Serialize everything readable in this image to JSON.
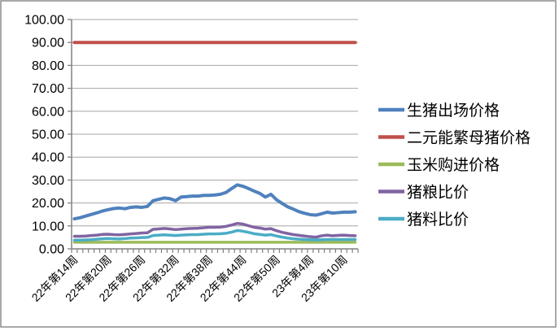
{
  "chart_data": {
    "type": "line",
    "title": "",
    "xlabel": "",
    "ylabel": "",
    "grid": true,
    "legend_position": "right",
    "x_axis": {
      "n_points": 51,
      "tick_labels": [
        "22年第14周",
        "22年第20周",
        "22年第26周",
        "22年第32周",
        "22年第38周",
        "22年第44周",
        "22年第50周",
        "23年第4周",
        "23年第10周"
      ],
      "tick_label_indices": [
        0,
        6,
        12,
        18,
        24,
        30,
        36,
        42,
        48
      ]
    },
    "y_axis": {
      "min": 0,
      "max": 100,
      "step": 10,
      "tick_labels": [
        "100.00",
        "90.00",
        "80.00",
        "70.00",
        "60.00",
        "50.00",
        "40.00",
        "30.00",
        "20.00",
        "10.00",
        "0.00"
      ]
    },
    "series": [
      {
        "name": "生猪出场价格",
        "color": "#4F81BD",
        "values": [
          13.1,
          13.6,
          14.3,
          15.0,
          15.7,
          16.5,
          17.1,
          17.6,
          17.8,
          17.5,
          18.1,
          18.3,
          18.1,
          18.5,
          21.0,
          21.6,
          22.2,
          21.9,
          21.0,
          22.6,
          22.8,
          23.0,
          23.0,
          23.3,
          23.3,
          23.5,
          23.8,
          24.6,
          26.3,
          27.9,
          27.3,
          26.3,
          25.2,
          24.2,
          22.6,
          23.8,
          21.4,
          19.8,
          18.3,
          17.3,
          16.2,
          15.5,
          14.9,
          14.7,
          15.3,
          16.0,
          15.6,
          15.8,
          16.0,
          16.0,
          16.2
        ]
      },
      {
        "name": "二元能繁母猪价格",
        "color": "#C0504D",
        "values": [
          90,
          90,
          90,
          90,
          90,
          90,
          90,
          90,
          90,
          90,
          90,
          90,
          90,
          90,
          90,
          90,
          90,
          90,
          90,
          90,
          90,
          90,
          90,
          90,
          90,
          90,
          90,
          90,
          90,
          90,
          90,
          90,
          90,
          90,
          90,
          90,
          90,
          90,
          90,
          90,
          90,
          90,
          90,
          90,
          90,
          90,
          90,
          90,
          90,
          90,
          90
        ]
      },
      {
        "name": "玉米购进价格",
        "color": "#9BBB59",
        "values": [
          2.9,
          2.9,
          2.9,
          2.9,
          2.9,
          2.9,
          2.9,
          2.9,
          2.9,
          2.9,
          2.9,
          2.9,
          2.9,
          2.9,
          2.9,
          2.9,
          2.9,
          2.9,
          2.9,
          2.9,
          2.9,
          2.9,
          2.9,
          2.9,
          2.9,
          2.9,
          2.9,
          2.9,
          2.9,
          2.9,
          2.9,
          2.9,
          2.9,
          2.9,
          2.9,
          2.9,
          2.9,
          2.9,
          2.9,
          2.9,
          2.9,
          2.9,
          2.9,
          2.9,
          2.9,
          2.9,
          2.9,
          2.9,
          2.9,
          2.9,
          2.9
        ]
      },
      {
        "name": "猪粮比价",
        "color": "#8064A2",
        "values": [
          5.5,
          5.5,
          5.6,
          5.8,
          6.0,
          6.3,
          6.4,
          6.2,
          6.1,
          6.3,
          6.5,
          6.7,
          6.9,
          7.0,
          8.5,
          8.7,
          8.9,
          8.7,
          8.4,
          8.6,
          8.8,
          8.9,
          9.0,
          9.2,
          9.4,
          9.4,
          9.5,
          9.8,
          10.4,
          11.1,
          10.8,
          10.1,
          9.4,
          9.1,
          8.6,
          8.8,
          7.9,
          7.2,
          6.7,
          6.2,
          5.9,
          5.6,
          5.3,
          5.1,
          5.7,
          6.0,
          5.7,
          5.9,
          6.0,
          5.8,
          5.7
        ]
      },
      {
        "name": "猪料比价",
        "color": "#4BACC6",
        "values": [
          3.8,
          3.8,
          3.9,
          4.0,
          4.2,
          4.4,
          4.5,
          4.4,
          4.3,
          4.5,
          4.7,
          4.8,
          4.9,
          5.0,
          5.8,
          6.0,
          6.1,
          6.0,
          5.8,
          6.0,
          6.1,
          6.2,
          6.2,
          6.4,
          6.5,
          6.5,
          6.6,
          6.8,
          7.3,
          8.0,
          7.7,
          7.2,
          6.6,
          6.3,
          6.0,
          6.2,
          5.6,
          5.1,
          4.7,
          4.4,
          4.2,
          4.1,
          4.0,
          3.9,
          4.0,
          4.1,
          4.1,
          4.1,
          4.1,
          4.1,
          4.1
        ]
      }
    ],
    "colors": {
      "background": "#FFFFFF",
      "gridline": "#A6A6A6",
      "axis": "#808080",
      "tick_text": "#000000",
      "border": "#8C8C8C"
    }
  }
}
